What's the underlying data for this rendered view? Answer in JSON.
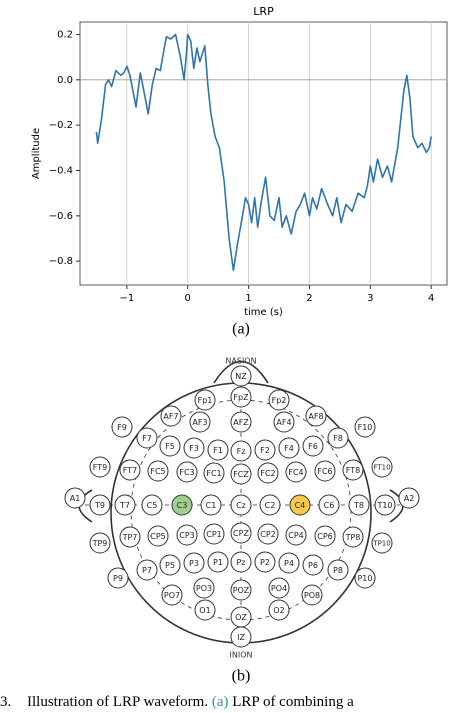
{
  "chart_data": {
    "type": "line",
    "title": "LRP",
    "x_label": "time (s)",
    "y_label": "Amplitude",
    "x": [
      -1.5,
      -1.48,
      -1.42,
      -1.35,
      -1.3,
      -1.25,
      -1.18,
      -1.1,
      -1.05,
      -1.0,
      -0.95,
      -0.9,
      -0.85,
      -0.78,
      -0.72,
      -0.65,
      -0.58,
      -0.52,
      -0.45,
      -0.4,
      -0.35,
      -0.28,
      -0.2,
      -0.12,
      -0.06,
      -0.02,
      0.0,
      0.05,
      0.1,
      0.15,
      0.2,
      0.28,
      0.33,
      0.38,
      0.45,
      0.52,
      0.6,
      0.68,
      0.75,
      0.82,
      0.9,
      0.95,
      1.0,
      1.05,
      1.1,
      1.15,
      1.2,
      1.28,
      1.35,
      1.42,
      1.5,
      1.55,
      1.62,
      1.7,
      1.78,
      1.85,
      1.92,
      2.0,
      2.05,
      2.12,
      2.2,
      2.3,
      2.38,
      2.45,
      2.52,
      2.6,
      2.7,
      2.8,
      2.9,
      2.95,
      3.0,
      3.05,
      3.12,
      3.2,
      3.28,
      3.35,
      3.45,
      3.55,
      3.6,
      3.65,
      3.7,
      3.78,
      3.85,
      3.92,
      3.97,
      4.0
    ],
    "series": [
      {
        "name": "LRP",
        "color": "#2e75b0",
        "values": [
          -0.23,
          -0.28,
          -0.18,
          -0.02,
          0.0,
          -0.03,
          0.04,
          0.02,
          0.03,
          0.06,
          0.02,
          -0.05,
          -0.12,
          0.03,
          -0.05,
          -0.15,
          -0.02,
          0.05,
          0.04,
          0.12,
          0.19,
          0.18,
          0.2,
          0.1,
          0.0,
          0.12,
          0.2,
          0.17,
          0.05,
          0.14,
          0.08,
          0.15,
          -0.02,
          -0.15,
          -0.25,
          -0.3,
          -0.45,
          -0.7,
          -0.84,
          -0.72,
          -0.6,
          -0.52,
          -0.55,
          -0.63,
          -0.52,
          -0.65,
          -0.55,
          -0.43,
          -0.6,
          -0.62,
          -0.52,
          -0.65,
          -0.6,
          -0.68,
          -0.58,
          -0.55,
          -0.5,
          -0.6,
          -0.52,
          -0.57,
          -0.48,
          -0.55,
          -0.6,
          -0.52,
          -0.63,
          -0.55,
          -0.58,
          -0.5,
          -0.52,
          -0.47,
          -0.38,
          -0.45,
          -0.35,
          -0.43,
          -0.38,
          -0.45,
          -0.3,
          -0.05,
          0.02,
          -0.08,
          -0.25,
          -0.3,
          -0.28,
          -0.32,
          -0.3,
          -0.25
        ]
      }
    ],
    "xlim": [
      -1.77,
      4.26
    ],
    "ylim": [
      -0.905,
      0.255
    ],
    "xticks": [
      {
        "value": -1,
        "label": "−1"
      },
      0,
      1,
      2,
      3,
      4
    ],
    "yticks": [
      {
        "value": -0.8,
        "label": "−0.8"
      },
      {
        "value": -0.6,
        "label": "−0.6"
      },
      {
        "value": -0.4,
        "label": "−0.4"
      },
      {
        "value": -0.2,
        "label": "−0.2"
      },
      {
        "value": 0,
        "label": "0.0"
      },
      0.2
    ],
    "grid": "x",
    "reference_line": 0
  },
  "caption_a": "(a)",
  "diagram": {
    "top_label": "NASION",
    "bottom_label": "INION",
    "electrodes": [
      {
        "label": "NZ"
      },
      {
        "label": "FpZ"
      },
      {
        "label": "Fp1"
      },
      {
        "label": "Fp2"
      },
      {
        "label": "AF7"
      },
      {
        "label": "AF3"
      },
      {
        "label": "AFZ"
      },
      {
        "label": "AF4"
      },
      {
        "label": "AF8"
      },
      {
        "label": "F9"
      },
      {
        "label": "F10"
      },
      {
        "label": "F7"
      },
      {
        "label": "F5"
      },
      {
        "label": "F3"
      },
      {
        "label": "F1"
      },
      {
        "label": "Fz"
      },
      {
        "label": "F2"
      },
      {
        "label": "F4"
      },
      {
        "label": "F6"
      },
      {
        "label": "F8"
      },
      {
        "label": "FT9"
      },
      {
        "label": "FT7"
      },
      {
        "label": "FC5"
      },
      {
        "label": "FC3"
      },
      {
        "label": "FC1"
      },
      {
        "label": "FCZ"
      },
      {
        "label": "FC2"
      },
      {
        "label": "FC4"
      },
      {
        "label": "FC6"
      },
      {
        "label": "FT8"
      },
      {
        "label": "FT10"
      },
      {
        "label": "A1"
      },
      {
        "label": "T9"
      },
      {
        "label": "T7"
      },
      {
        "label": "C5"
      },
      {
        "label": "C3",
        "color": "#9fd08f"
      },
      {
        "label": "C1"
      },
      {
        "label": "Cz"
      },
      {
        "label": "C2"
      },
      {
        "label": "C4",
        "color": "#f7c948"
      },
      {
        "label": "C6"
      },
      {
        "label": "T8"
      },
      {
        "label": "T10"
      },
      {
        "label": "A2"
      },
      {
        "label": "TP9"
      },
      {
        "label": "TP7"
      },
      {
        "label": "CP5"
      },
      {
        "label": "CP3"
      },
      {
        "label": "CP1"
      },
      {
        "label": "CPZ"
      },
      {
        "label": "CP2"
      },
      {
        "label": "CP4"
      },
      {
        "label": "CP6"
      },
      {
        "label": "TP8"
      },
      {
        "label": "TP10"
      },
      {
        "label": "P9"
      },
      {
        "label": "P7"
      },
      {
        "label": "P5"
      },
      {
        "label": "P3"
      },
      {
        "label": "P1"
      },
      {
        "label": "Pz"
      },
      {
        "label": "P2"
      },
      {
        "label": "P4"
      },
      {
        "label": "P6"
      },
      {
        "label": "P8"
      },
      {
        "label": "P10"
      },
      {
        "label": "PO7"
      },
      {
        "label": "PO3"
      },
      {
        "label": "POZ"
      },
      {
        "label": "PO4"
      },
      {
        "label": "PO8"
      },
      {
        "label": "O1"
      },
      {
        "label": "OZ"
      },
      {
        "label": "O2"
      },
      {
        "label": "IZ"
      }
    ]
  },
  "caption_b": "(b)",
  "figure_caption": {
    "number": "3.",
    "text": "Illustration of LRP waveform.",
    "ref": "(a)",
    "rest": "LRP of combining a"
  }
}
